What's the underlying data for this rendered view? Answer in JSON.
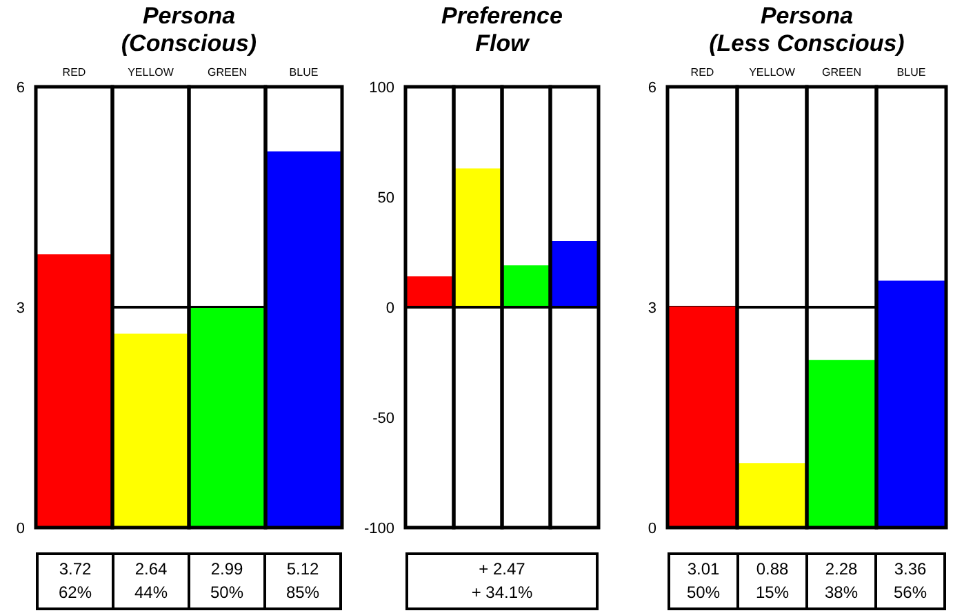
{
  "chart_data": [
    {
      "type": "bar",
      "title": "Persona\n(Conscious)",
      "categories": [
        "RED",
        "YELLOW",
        "GREEN",
        "BLUE"
      ],
      "values": [
        3.72,
        2.64,
        2.99,
        5.12
      ],
      "colors": [
        "#ff0000",
        "#ffff00",
        "#00ff00",
        "#0000ff"
      ],
      "ylim": [
        0,
        6
      ],
      "yticks": [
        0,
        3,
        6
      ],
      "grid": "y",
      "value_labels": [
        "3.72\n62%",
        "2.64\n44%",
        "2.99\n50%",
        "5.12\n85%"
      ]
    },
    {
      "type": "bar",
      "title": "Preference\nFlow",
      "categories": [
        null,
        null,
        null,
        null
      ],
      "values": [
        14,
        63,
        19,
        30
      ],
      "colors": [
        "#ff0000",
        "#ffff00",
        "#00ff00",
        "#0000ff"
      ],
      "ylim": [
        -100,
        100
      ],
      "yticks": [
        -100,
        -50,
        0,
        50,
        100
      ],
      "ref_lines": [
        {
          "axis": "y",
          "value": 0
        }
      ],
      "tick_labels": "y",
      "annotations": [
        "+ 2.47",
        "+ 34.1%"
      ]
    },
    {
      "type": "bar",
      "title": "Persona\n(Less Conscious)",
      "categories": [
        "RED",
        "YELLOW",
        "GREEN",
        "BLUE"
      ],
      "values": [
        3.01,
        0.88,
        2.28,
        3.36
      ],
      "colors": [
        "#ff0000",
        "#ffff00",
        "#00ff00",
        "#0000ff"
      ],
      "ylim": [
        0,
        6
      ],
      "yticks": [
        0,
        3,
        6
      ],
      "grid": "y",
      "value_labels": [
        "3.01\n50%",
        "0.88\n15%",
        "2.28\n38%",
        "3.36\n56%"
      ]
    }
  ]
}
